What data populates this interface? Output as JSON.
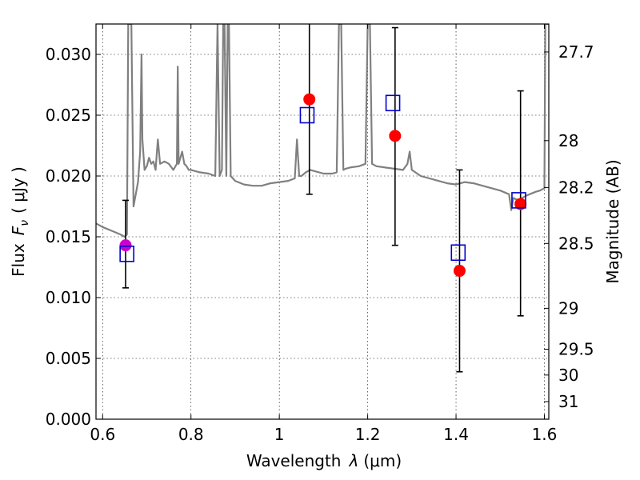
{
  "chart_data": {
    "type": "scatter",
    "xlabel_text": "Wavelength",
    "xlabel_symbol": "λ",
    "xlabel_unit": "(μm)",
    "ylabel_text": "Flux",
    "ylabel_symbol": "F",
    "ylabel_sub": "ν",
    "ylabel_unit": "( μJy )",
    "y2label": "Magnitude (AB)",
    "xlim": [
      0.585,
      1.61
    ],
    "ylim": [
      0.0,
      0.0325
    ],
    "grid": true,
    "x_ticks": [
      {
        "v": 0.6,
        "label": "0.6"
      },
      {
        "v": 0.8,
        "label": "0.8"
      },
      {
        "v": 1.0,
        "label": "1"
      },
      {
        "v": 1.2,
        "label": "1.2"
      },
      {
        "v": 1.4,
        "label": "1.4"
      },
      {
        "v": 1.6,
        "label": "1.6"
      }
    ],
    "y_ticks": [
      {
        "v": 0.0,
        "label": "0.000"
      },
      {
        "v": 0.005,
        "label": "0.005"
      },
      {
        "v": 0.01,
        "label": "0.010"
      },
      {
        "v": 0.015,
        "label": "0.015"
      },
      {
        "v": 0.02,
        "label": "0.020"
      },
      {
        "v": 0.025,
        "label": "0.025"
      },
      {
        "v": 0.03,
        "label": "0.030"
      }
    ],
    "mag_ticks": [
      {
        "mag": 27.7,
        "label": "27.7"
      },
      {
        "mag": 28.0,
        "label": "28"
      },
      {
        "mag": 28.2,
        "label": "28.2"
      },
      {
        "mag": 28.5,
        "label": "28.5"
      },
      {
        "mag": 29.0,
        "label": "29"
      },
      {
        "mag": 29.5,
        "label": "29.5"
      },
      {
        "mag": 30.0,
        "label": "30"
      },
      {
        "mag": 31.0,
        "label": "31"
      }
    ],
    "series": [
      {
        "type": "line",
        "color": "#808080",
        "x": [
          0.585,
          0.6,
          0.62,
          0.64,
          0.65,
          0.655,
          0.658,
          0.66,
          0.662,
          0.665,
          0.67,
          0.675,
          0.68,
          0.685,
          0.688,
          0.69,
          0.695,
          0.7,
          0.705,
          0.71,
          0.715,
          0.72,
          0.725,
          0.73,
          0.74,
          0.75,
          0.76,
          0.768,
          0.77,
          0.772,
          0.78,
          0.785,
          0.79,
          0.795,
          0.8,
          0.82,
          0.84,
          0.855,
          0.86,
          0.865,
          0.87,
          0.873,
          0.876,
          0.88,
          0.883,
          0.886,
          0.89,
          0.9,
          0.92,
          0.94,
          0.96,
          0.98,
          1.0,
          1.02,
          1.035,
          1.04,
          1.045,
          1.05,
          1.06,
          1.07,
          1.08,
          1.1,
          1.12,
          1.13,
          1.135,
          1.14,
          1.145,
          1.15,
          1.16,
          1.18,
          1.195,
          1.2,
          1.205,
          1.21,
          1.22,
          1.24,
          1.26,
          1.28,
          1.29,
          1.295,
          1.3,
          1.32,
          1.34,
          1.36,
          1.38,
          1.4,
          1.42,
          1.44,
          1.46,
          1.48,
          1.5,
          1.52,
          1.525,
          1.53,
          1.54,
          1.56,
          1.58,
          1.59,
          1.6,
          1.602,
          1.605,
          1.61
        ],
        "y": [
          0.0161,
          0.0158,
          0.0155,
          0.0152,
          0.015,
          0.0152,
          0.0325,
          0.0325,
          0.0325,
          0.0325,
          0.0175,
          0.0185,
          0.0195,
          0.022,
          0.03,
          0.023,
          0.0205,
          0.0208,
          0.0215,
          0.021,
          0.0212,
          0.0205,
          0.023,
          0.021,
          0.0212,
          0.021,
          0.0205,
          0.021,
          0.029,
          0.021,
          0.022,
          0.021,
          0.0208,
          0.0205,
          0.0205,
          0.0203,
          0.0202,
          0.02,
          0.0325,
          0.02,
          0.0205,
          0.0325,
          0.0325,
          0.02,
          0.0325,
          0.0325,
          0.02,
          0.0196,
          0.0193,
          0.0192,
          0.0192,
          0.0194,
          0.0195,
          0.0196,
          0.0198,
          0.023,
          0.02,
          0.02,
          0.0203,
          0.0205,
          0.0204,
          0.0202,
          0.0202,
          0.0203,
          0.0325,
          0.0325,
          0.0205,
          0.0206,
          0.0207,
          0.0208,
          0.021,
          0.0325,
          0.0325,
          0.021,
          0.0208,
          0.0207,
          0.0206,
          0.0205,
          0.021,
          0.022,
          0.0205,
          0.02,
          0.0198,
          0.0196,
          0.0194,
          0.0193,
          0.0195,
          0.0194,
          0.0192,
          0.019,
          0.0188,
          0.0185,
          0.0172,
          0.0182,
          0.018,
          0.0184,
          0.0187,
          0.0188,
          0.019,
          0.0325,
          0.0325,
          0.0325
        ]
      },
      {
        "type": "errorbar",
        "color": "#000000",
        "points": [
          {
            "x": 0.652,
            "lo": 0.0108,
            "hi": 0.018
          },
          {
            "x": 1.068,
            "lo": 0.0185,
            "hi": 0.0325
          },
          {
            "x": 1.262,
            "lo": 0.0143,
            "hi": 0.0322
          },
          {
            "x": 1.408,
            "lo": 0.0039,
            "hi": 0.0205
          },
          {
            "x": 1.546,
            "lo": 0.0085,
            "hi": 0.027
          }
        ]
      },
      {
        "type": "scatter",
        "marker": "circle",
        "color": "#ff0000",
        "points": [
          {
            "x": 1.068,
            "y": 0.0263
          },
          {
            "x": 1.262,
            "y": 0.0233
          },
          {
            "x": 1.408,
            "y": 0.0122
          },
          {
            "x": 1.546,
            "y": 0.0177
          }
        ]
      },
      {
        "type": "scatter",
        "marker": "circle",
        "color": "#cc00cc",
        "points": [
          {
            "x": 0.652,
            "y": 0.0143
          }
        ]
      },
      {
        "type": "scatter",
        "marker": "square-open",
        "color": "#0000cc",
        "points": [
          {
            "x": 0.655,
            "y": 0.0136
          },
          {
            "x": 1.063,
            "y": 0.025
          },
          {
            "x": 1.257,
            "y": 0.026
          },
          {
            "x": 1.405,
            "y": 0.0137
          },
          {
            "x": 1.542,
            "y": 0.018
          }
        ]
      }
    ]
  }
}
